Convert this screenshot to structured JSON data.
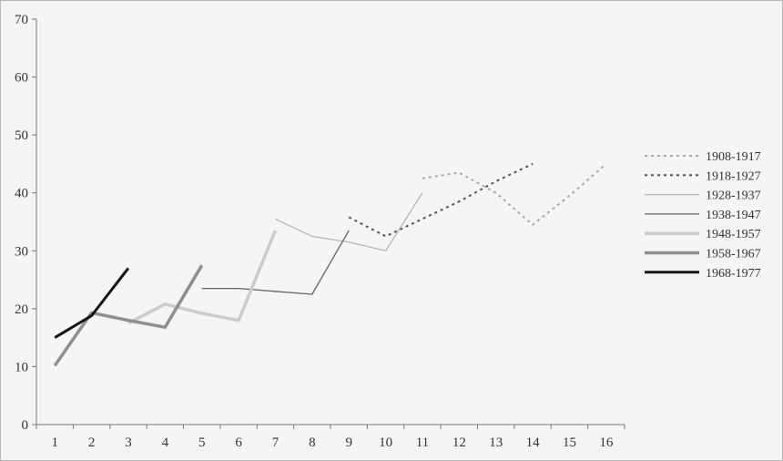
{
  "chart_data": {
    "type": "line",
    "title": "",
    "xlabel": "",
    "ylabel": "",
    "x": [
      1,
      2,
      3,
      4,
      5,
      6,
      7,
      8,
      9,
      10,
      11,
      12,
      13,
      14,
      15,
      16
    ],
    "x_tick_labels": [
      "1",
      "2",
      "3",
      "4",
      "5",
      "6",
      "7",
      "8",
      "9",
      "10",
      "11",
      "12",
      "13",
      "14",
      "15",
      "16"
    ],
    "y_ticks": [
      0,
      10,
      20,
      30,
      40,
      50,
      60,
      70
    ],
    "y_tick_labels": [
      "0",
      "10",
      "20",
      "30",
      "40",
      "50",
      "60",
      "70"
    ],
    "ylim": [
      0,
      70
    ],
    "grid": false,
    "legend_position": "right",
    "series": [
      {
        "name": "1908-1917",
        "color": "#a8a8a8",
        "style": "dotted",
        "points": [
          [
            11,
            42.5
          ],
          [
            12,
            43.5
          ],
          [
            13,
            40.0
          ],
          [
            14,
            34.5
          ],
          [
            15,
            39.5
          ],
          [
            16,
            45.0
          ]
        ]
      },
      {
        "name": "1918-1927",
        "color": "#555555",
        "style": "dotted",
        "points": [
          [
            9,
            35.8
          ],
          [
            10,
            32.5
          ],
          [
            11,
            35.5
          ],
          [
            12,
            38.5
          ],
          [
            13,
            42.0
          ],
          [
            14,
            45.0
          ]
        ]
      },
      {
        "name": "1928-1937",
        "color": "#b5b5b5",
        "style": "solid-thin",
        "points": [
          [
            7,
            35.5
          ],
          [
            8,
            32.5
          ],
          [
            9,
            31.5
          ],
          [
            10,
            30.0
          ],
          [
            11,
            40.0
          ]
        ]
      },
      {
        "name": "1938-1947",
        "color": "#666666",
        "style": "solid-thin",
        "points": [
          [
            5,
            23.5
          ],
          [
            6,
            23.5
          ],
          [
            7,
            23.0
          ],
          [
            8,
            22.5
          ],
          [
            9,
            33.5
          ]
        ]
      },
      {
        "name": "1948-1957",
        "color": "#cccccc",
        "style": "solid-thick",
        "points": [
          [
            3,
            17.5
          ],
          [
            4,
            20.8
          ],
          [
            5,
            19.2
          ],
          [
            6,
            18.0
          ],
          [
            7,
            33.5
          ]
        ]
      },
      {
        "name": "1958-1967",
        "color": "#8f8f8f",
        "style": "solid-thick",
        "points": [
          [
            1,
            10.2
          ],
          [
            2,
            19.3
          ],
          [
            3,
            18.0
          ],
          [
            4,
            16.8
          ],
          [
            5,
            27.5
          ]
        ]
      },
      {
        "name": "1968-1977",
        "color": "#141414",
        "style": "solid-bold",
        "points": [
          [
            1,
            15.0
          ],
          [
            2,
            18.8
          ],
          [
            3,
            27.0
          ]
        ]
      }
    ]
  }
}
